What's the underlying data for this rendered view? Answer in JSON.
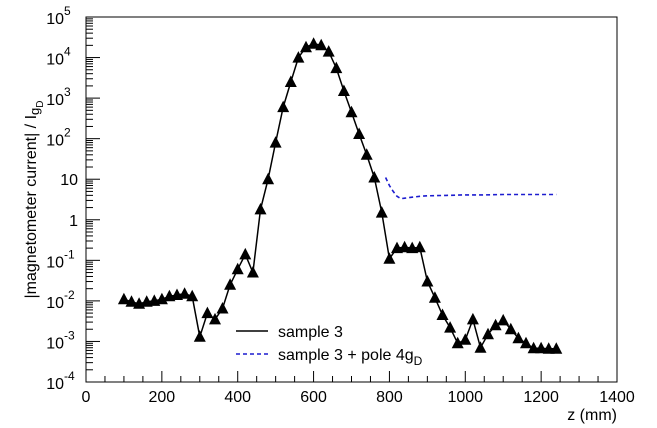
{
  "chart_data": {
    "type": "line",
    "title": "",
    "xlabel": "z (mm)",
    "ylabel_main": "|magnetometer current| / I",
    "ylabel_sub1": "g",
    "ylabel_sub2": "D",
    "xlim": [
      0,
      1400
    ],
    "ylim": [
      0.0001,
      100000
    ],
    "yscale": "log",
    "legend_position": "bottom-center",
    "x_ticks": [
      0,
      200,
      400,
      600,
      800,
      1000,
      1200,
      1400
    ],
    "x_tick_labels": [
      "0",
      "200",
      "400",
      "600",
      "800",
      "1000",
      "1200",
      "1400"
    ],
    "y_ticks": [
      {
        "value": 0.0001,
        "base": "10",
        "exp": "-4"
      },
      {
        "value": 0.001,
        "base": "10",
        "exp": "-3"
      },
      {
        "value": 0.01,
        "base": "10",
        "exp": "-2"
      },
      {
        "value": 0.1,
        "base": "10",
        "exp": "-1"
      },
      {
        "value": 1,
        "base": "1",
        "exp": ""
      },
      {
        "value": 10,
        "base": "10",
        "exp": ""
      },
      {
        "value": 100,
        "base": "10",
        "exp": "2"
      },
      {
        "value": 1000,
        "base": "10",
        "exp": "3"
      },
      {
        "value": 10000,
        "base": "10",
        "exp": "4"
      },
      {
        "value": 100000,
        "base": "10",
        "exp": "5"
      }
    ],
    "series": [
      {
        "name": "sample 3",
        "color": "#000000",
        "style": "solid",
        "marker": "triangle",
        "x": [
          100,
          120,
          140,
          160,
          180,
          200,
          220,
          240,
          260,
          280,
          300,
          320,
          340,
          360,
          380,
          400,
          420,
          440,
          460,
          480,
          500,
          520,
          540,
          560,
          580,
          600,
          620,
          640,
          660,
          680,
          700,
          720,
          740,
          760,
          780,
          800,
          820,
          840,
          860,
          880,
          900,
          920,
          940,
          960,
          980,
          1000,
          1020,
          1040,
          1060,
          1080,
          1100,
          1120,
          1140,
          1160,
          1180,
          1200,
          1220,
          1240
        ],
        "y": [
          0.011,
          0.0095,
          0.0085,
          0.0095,
          0.01,
          0.011,
          0.013,
          0.014,
          0.015,
          0.013,
          0.0013,
          0.005,
          0.0035,
          0.0065,
          0.025,
          0.06,
          0.14,
          0.05,
          1.8,
          10,
          80,
          600,
          2500,
          10000,
          18000,
          22000,
          20000,
          14000,
          5500,
          1500,
          450,
          130,
          40,
          11,
          1.5,
          0.11,
          0.2,
          0.21,
          0.2,
          0.21,
          0.03,
          0.012,
          0.0045,
          0.0022,
          0.0009,
          0.0011,
          0.0035,
          0.0007,
          0.0015,
          0.0025,
          0.0033,
          0.002,
          0.0012,
          0.0009,
          0.00068,
          0.00068,
          0.00066,
          0.00066
        ]
      },
      {
        "name": "sample 3 + pole 4g",
        "name_sub": "D",
        "color": "#1c1ccf",
        "style": "dashed",
        "marker": "none",
        "x": [
          790,
          800,
          810,
          820,
          830,
          840,
          860,
          880,
          900,
          950,
          1000,
          1050,
          1100,
          1150,
          1200,
          1240
        ],
        "y": [
          11,
          7,
          5,
          3.8,
          3.3,
          3.4,
          3.6,
          3.8,
          3.9,
          4.0,
          4.1,
          4.1,
          4.2,
          4.2,
          4.2,
          4.2
        ]
      }
    ]
  }
}
